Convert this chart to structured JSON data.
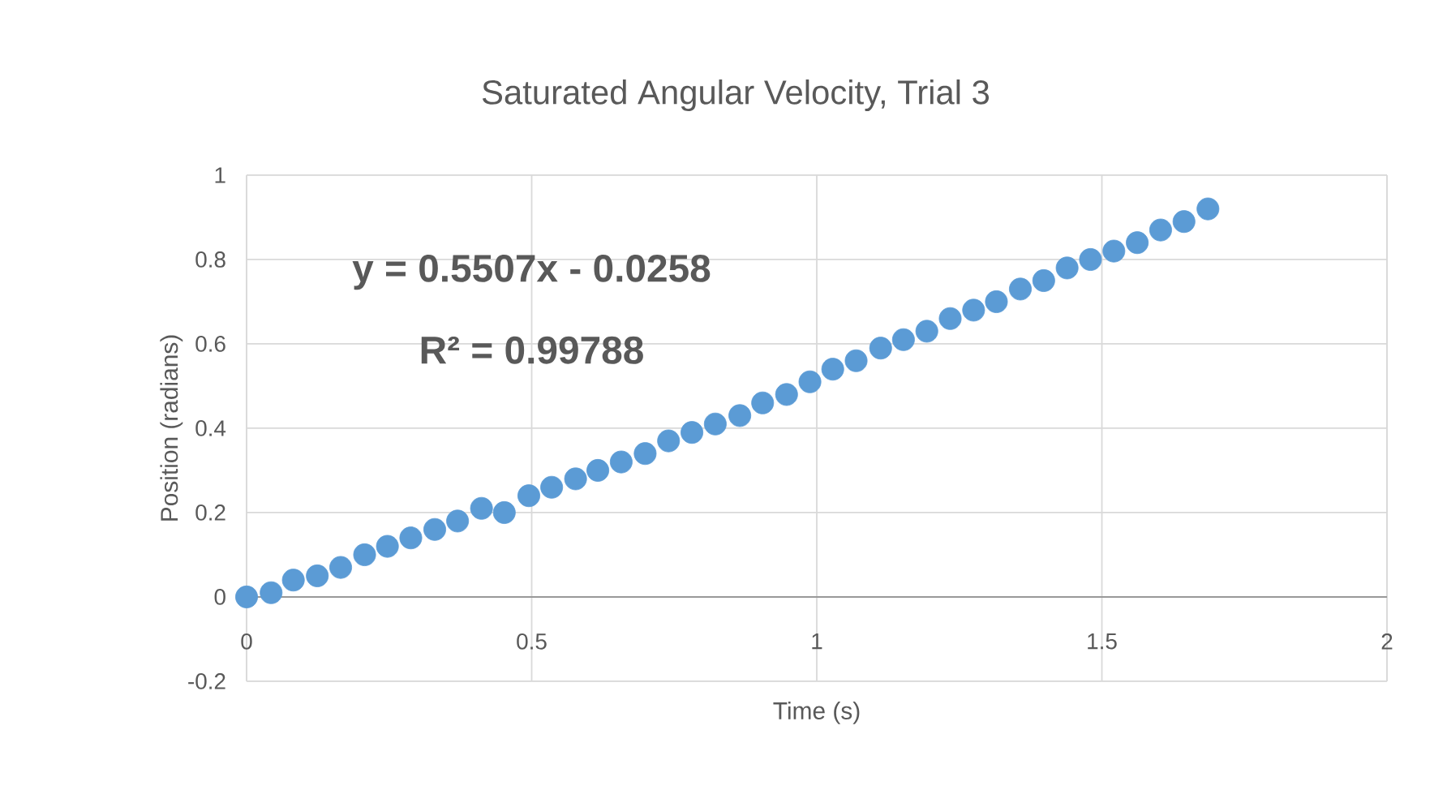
{
  "chart_data": {
    "type": "scatter",
    "title": "Saturated Angular Velocity, Trial 3",
    "xlabel": "Time (s)",
    "ylabel": "Position (radians)",
    "annotations": [
      "y = 0.5507x - 0.0258",
      "R² = 0.99788"
    ],
    "xlim": [
      0,
      2
    ],
    "ylim": [
      -0.2,
      1
    ],
    "xticks": [
      0,
      0.5,
      1,
      1.5,
      2
    ],
    "yticks": [
      -0.2,
      0,
      0.2,
      0.4,
      0.6,
      0.8,
      1
    ],
    "grid": true,
    "series": [
      {
        "color": "#5b9bd5",
        "x": [
          0,
          0.043,
          0.082,
          0.124,
          0.165,
          0.207,
          0.247,
          0.288,
          0.33,
          0.37,
          0.412,
          0.452,
          0.495,
          0.535,
          0.577,
          0.616,
          0.657,
          0.699,
          0.74,
          0.781,
          0.822,
          0.865,
          0.905,
          0.947,
          0.988,
          1.028,
          1.069,
          1.112,
          1.152,
          1.193,
          1.234,
          1.275,
          1.315,
          1.357,
          1.398,
          1.439,
          1.48,
          1.521,
          1.562,
          1.603,
          1.644,
          1.686
        ],
        "values": [
          0,
          0.01,
          0.04,
          0.05,
          0.07,
          0.1,
          0.12,
          0.14,
          0.16,
          0.18,
          0.21,
          0.2,
          0.24,
          0.26,
          0.28,
          0.3,
          0.32,
          0.34,
          0.37,
          0.39,
          0.41,
          0.43,
          0.46,
          0.48,
          0.51,
          0.54,
          0.56,
          0.59,
          0.61,
          0.63,
          0.66,
          0.68,
          0.7,
          0.73,
          0.75,
          0.78,
          0.8,
          0.82,
          0.84,
          0.87,
          0.89,
          0.92
        ]
      }
    ]
  }
}
